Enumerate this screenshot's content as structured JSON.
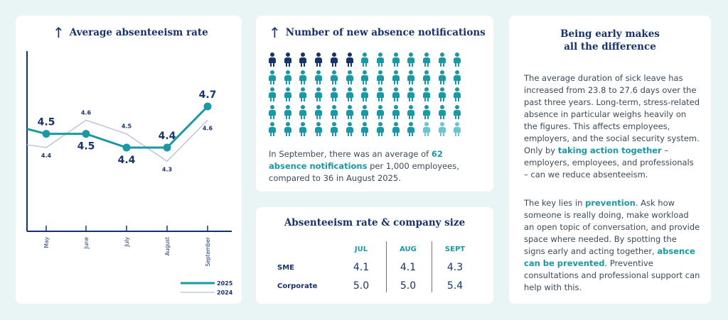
{
  "colors": {
    "navy": "#17336b",
    "teal": "#1a98a4",
    "light_teal": "#6cc4cc",
    "series_2024": "#bfc8da"
  },
  "chart_card": {
    "title": "Average absenteeism rate",
    "icon": "arrow-up-icon"
  },
  "chart_data": {
    "type": "line",
    "title": "Average absenteeism rate",
    "categories": [
      "May",
      "June",
      "July",
      "August",
      "September"
    ],
    "series": [
      {
        "name": "2025",
        "values": [
          4.5,
          4.5,
          4.4,
          4.4,
          4.7
        ],
        "labels": [
          "4.5",
          "4.5",
          "4.4",
          "4.4",
          "4.7"
        ]
      },
      {
        "name": "2024",
        "values": [
          4.4,
          4.6,
          4.5,
          4.3,
          4.6
        ],
        "labels": [
          "4.4",
          "4.6",
          "4.5",
          "4.3",
          "4.6"
        ]
      }
    ],
    "legend": [
      "2025",
      "2024"
    ],
    "legend_position": "bottom-right",
    "ylim": [
      3.8,
      5.0
    ]
  },
  "notifications_card": {
    "title": "Number of new absence notifications",
    "icon": "arrow-up-icon",
    "text_before": "In September, there was an average of ",
    "highlight": "62 absence notifications",
    "text_after": " per 1,000 employees, compared to 36 in August 2025.",
    "pictogram": {
      "total": 62,
      "rows": 5,
      "per_row": 13,
      "highlighted_count": 6
    }
  },
  "table_card": {
    "title": "Absenteeism rate & company size",
    "columns": [
      "JUL",
      "AUG",
      "SEPT"
    ],
    "rows": [
      {
        "label": "SME",
        "values": [
          "4.1",
          "4.1",
          "4.3"
        ]
      },
      {
        "label": "Corporate",
        "values": [
          "5.0",
          "5.0",
          "5.4"
        ]
      }
    ]
  },
  "text_card": {
    "title_line1": "Being early makes",
    "title_line2": "all the difference",
    "p1_a": "The average duration of sick leave has increased from 23.8 to 27.6 days over the past three years. Long-term, stress-related absence in particular weighs heavily on the figures. This affects employees, employers, and the social security system. Only by ",
    "p1_hl": "taking action together",
    "p1_b": " – employers, employees, and professionals – can we reduce absenteeism.",
    "p2_a": "The key lies in ",
    "p2_hl1": "prevention",
    "p2_b": ". Ask how someone is really doing, make workload an open topic of conversation, and provide space where needed. By spotting the signs early and acting together, ",
    "p2_hl2": "absence can be prevented",
    "p2_c": ". Preventive consultations and professional support can help with this."
  }
}
